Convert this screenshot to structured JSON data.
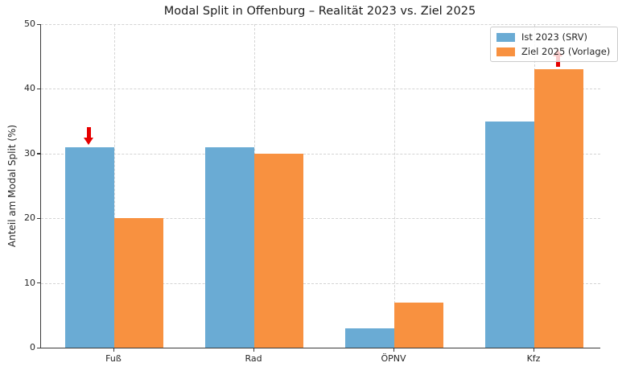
{
  "chart_data": {
    "type": "bar",
    "title": "Modal Split in Offenburg – Realität 2023 vs. Ziel 2025",
    "ylabel": "Anteil am Modal Split (%)",
    "categories": [
      "Fuß",
      "Rad",
      "ÖPNV",
      "Kfz"
    ],
    "series": [
      {
        "name": "Ist 2023 (SRV)",
        "color": "#6aabd4",
        "values": [
          31,
          31,
          3,
          35
        ]
      },
      {
        "name": "Ziel 2025 (Vorlage)",
        "color": "#f89140",
        "values": [
          20,
          30,
          7,
          43
        ]
      }
    ],
    "ylim": [
      0,
      50
    ],
    "yticks": [
      0,
      10,
      20,
      30,
      40,
      50
    ],
    "grid": true,
    "grid_style": "dashed",
    "legend_position": "upper right",
    "annotations": [
      {
        "type": "arrow",
        "direction": "down",
        "color": "#e60000",
        "category": "Fuß",
        "series_index": 0,
        "value": 31
      },
      {
        "type": "arrow",
        "direction": "up",
        "color": "#e60000",
        "category": "Kfz",
        "series_index": 1,
        "value": 43
      }
    ]
  }
}
